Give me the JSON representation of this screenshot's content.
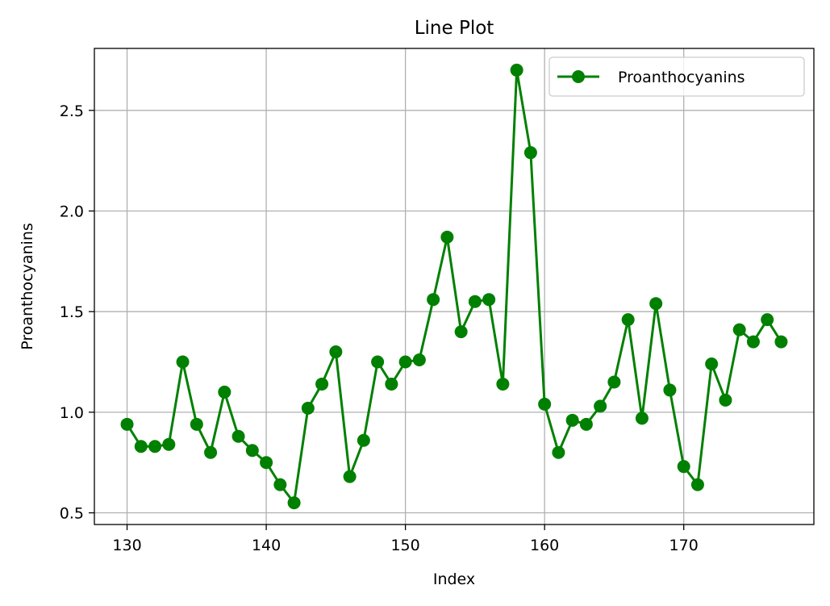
{
  "chart_data": {
    "type": "line",
    "title": "Line Plot",
    "xlabel": "Index",
    "ylabel": "Proanthocyanins",
    "xlim": [
      127.65,
      179.35
    ],
    "ylim": [
      0.442,
      2.808
    ],
    "xticks": [
      130,
      140,
      150,
      160,
      170
    ],
    "yticks": [
      0.5,
      1.0,
      1.5,
      2.0,
      2.5
    ],
    "xtick_labels": [
      "130",
      "140",
      "150",
      "160",
      "170"
    ],
    "ytick_labels": [
      "0.5",
      "1.0",
      "1.5",
      "2.0",
      "2.5"
    ],
    "grid": true,
    "legend_position": "upper right",
    "series": [
      {
        "name": "Proanthocyanins",
        "color": "#008000",
        "marker": "circle",
        "x": [
          130,
          131,
          132,
          133,
          134,
          135,
          136,
          137,
          138,
          139,
          140,
          141,
          142,
          143,
          144,
          145,
          146,
          147,
          148,
          149,
          150,
          151,
          152,
          153,
          154,
          155,
          156,
          157,
          158,
          159,
          160,
          161,
          162,
          163,
          164,
          165,
          166,
          167,
          168,
          169,
          170,
          171,
          172,
          173,
          174,
          175,
          176,
          177
        ],
        "y": [
          0.94,
          0.83,
          0.83,
          0.84,
          1.25,
          0.94,
          0.8,
          1.1,
          0.88,
          0.81,
          0.75,
          0.64,
          0.55,
          1.02,
          1.14,
          1.3,
          0.68,
          0.86,
          1.25,
          1.14,
          1.25,
          1.26,
          1.56,
          1.87,
          1.4,
          1.55,
          1.56,
          1.14,
          2.7,
          2.29,
          1.04,
          0.8,
          0.96,
          0.94,
          1.03,
          1.15,
          1.46,
          0.97,
          1.54,
          1.11,
          0.73,
          0.64,
          1.24,
          1.06,
          1.41,
          1.35,
          1.46,
          1.35
        ]
      }
    ]
  }
}
